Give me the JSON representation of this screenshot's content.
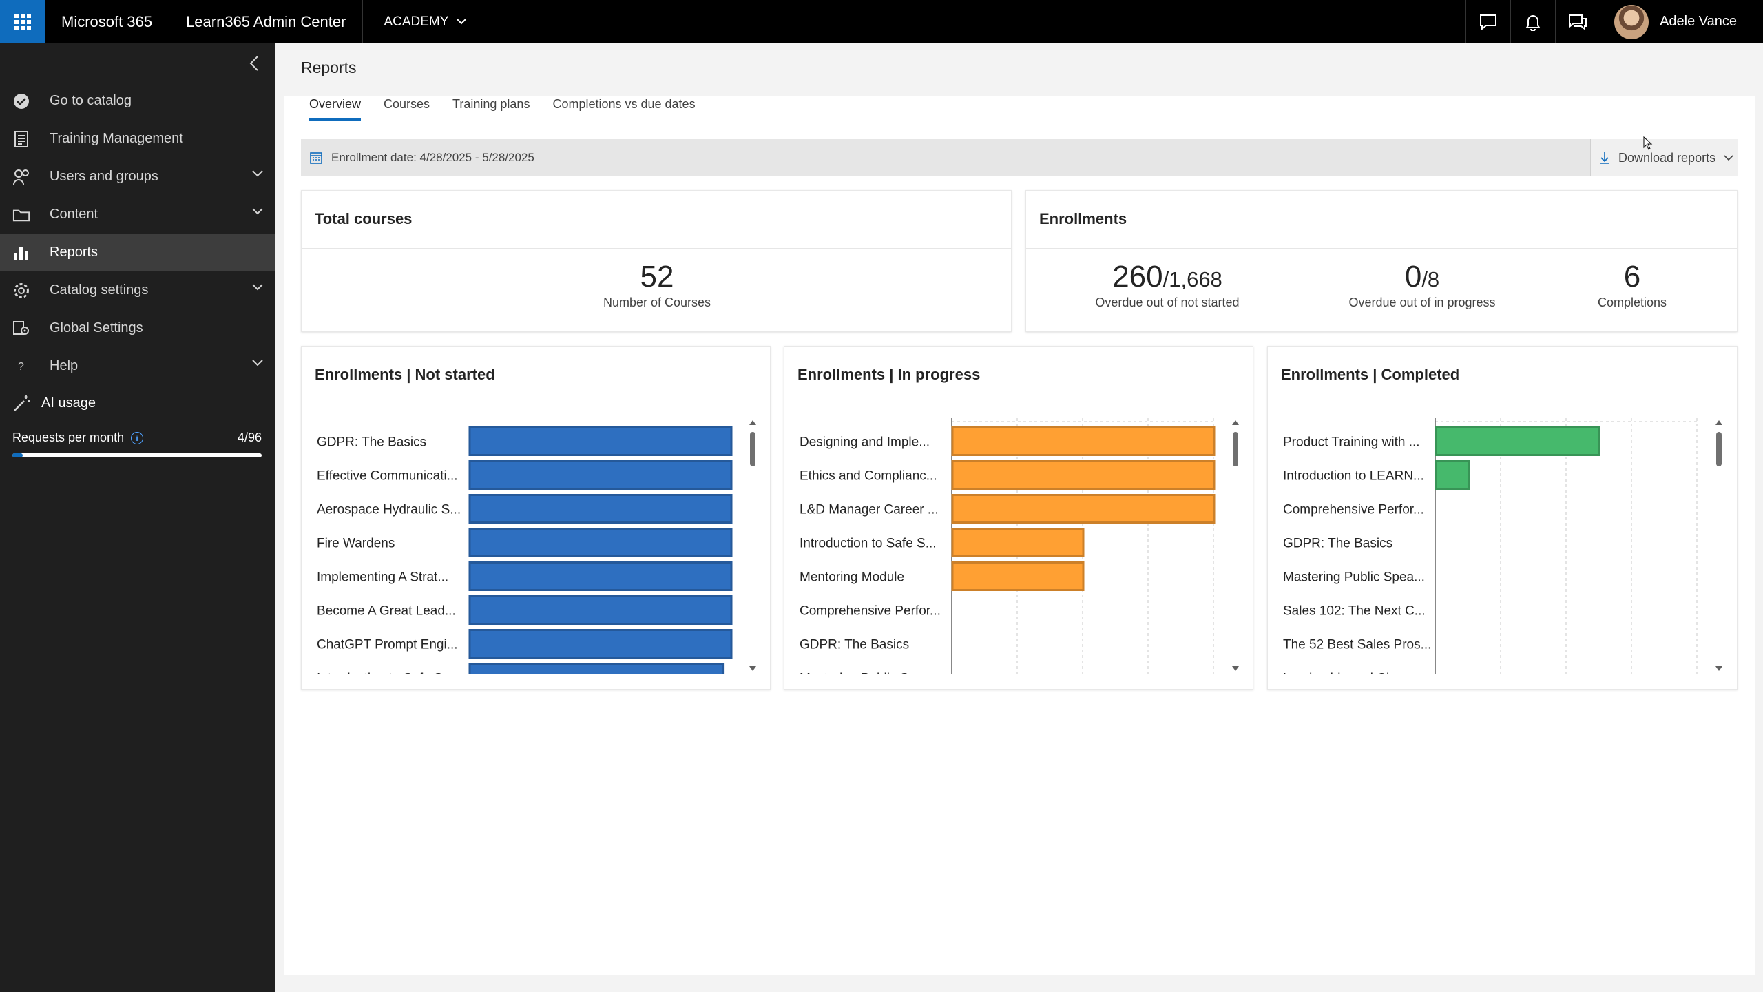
{
  "topbar": {
    "brand": "Microsoft 365",
    "app_name": "Learn365 Admin Center",
    "tenant": "ACADEMY",
    "user_name": "Adele Vance"
  },
  "sidebar": {
    "items": [
      {
        "label": "Go to catalog",
        "icon": "check-circle-icon",
        "has_chevron": false
      },
      {
        "label": "Training Management",
        "icon": "document-icon",
        "has_chevron": false
      },
      {
        "label": "Users and groups",
        "icon": "people-icon",
        "has_chevron": true
      },
      {
        "label": "Content",
        "icon": "folder-icon",
        "has_chevron": true
      },
      {
        "label": "Reports",
        "icon": "bar-chart-icon",
        "has_chevron": false,
        "active": true
      },
      {
        "label": "Catalog settings",
        "icon": "gear-icon",
        "has_chevron": true
      },
      {
        "label": "Global Settings",
        "icon": "settings-app-icon",
        "has_chevron": false
      },
      {
        "label": "Help",
        "icon": "question-icon",
        "has_chevron": true
      }
    ],
    "ai_usage": {
      "title": "AI usage",
      "requests_label": "Requests per month",
      "requests_value": "4/96",
      "progress": 0.0417
    }
  },
  "page": {
    "title": "Reports",
    "tabs": [
      "Overview",
      "Courses",
      "Training plans",
      "Completions vs due dates"
    ],
    "active_tab": "Overview",
    "filter_label": "Enrollment date: 4/28/2025 - 5/28/2025",
    "download_label": "Download reports"
  },
  "total_courses": {
    "title": "Total courses",
    "value": "52",
    "label": "Number of Courses"
  },
  "enrollments": {
    "title": "Enrollments",
    "kpis": [
      {
        "value": "260",
        "suffix": "/1,668",
        "label": "Overdue out of not started"
      },
      {
        "value": "0",
        "suffix": "/8",
        "label": "Overdue out of in progress"
      },
      {
        "value": "6",
        "suffix": "",
        "label": "Completions"
      }
    ]
  },
  "chart_data": [
    {
      "type": "bar",
      "orientation": "horizontal",
      "title": "Enrollments | Not started",
      "color": "#2e6fc0",
      "categories": [
        "GDPR: The Basics",
        "Effective Communicati...",
        "Aerospace Hydraulic S...",
        "Fire Wardens",
        "Implementing A Strat...",
        "Become A Great Lead...",
        "ChatGPT Prompt Engi...",
        "Introduction to Safe S..."
      ],
      "values": [
        1.0,
        1.0,
        1.0,
        1.0,
        1.0,
        1.0,
        1.0,
        0.97
      ],
      "grid": false
    },
    {
      "type": "bar",
      "orientation": "horizontal",
      "title": "Enrollments | In progress",
      "color": "#ffa033",
      "categories": [
        "Designing and Imple...",
        "Ethics and Complianc...",
        "L&D Manager Career ...",
        "Introduction to Safe S...",
        "Mentoring Module",
        "Comprehensive Perfor...",
        "GDPR: The Basics",
        "Mastering Public Spea..."
      ],
      "values": [
        2,
        2,
        2,
        1,
        1,
        0,
        0,
        0
      ],
      "xlim": [
        0,
        2
      ],
      "grid": true
    },
    {
      "type": "bar",
      "orientation": "horizontal",
      "title": "Enrollments | Completed",
      "color": "#46b96c",
      "categories": [
        "Product Training with ...",
        "Introduction to LEARN...",
        "Comprehensive Perfor...",
        "GDPR: The Basics",
        "Mastering Public Spea...",
        "Sales 102: The Next C...",
        "The 52 Best Sales Pros...",
        "Leadership and Chang..."
      ],
      "values": [
        5,
        1,
        0,
        0,
        0,
        0,
        0,
        0
      ],
      "xlim": [
        0,
        8
      ],
      "grid": true
    }
  ]
}
